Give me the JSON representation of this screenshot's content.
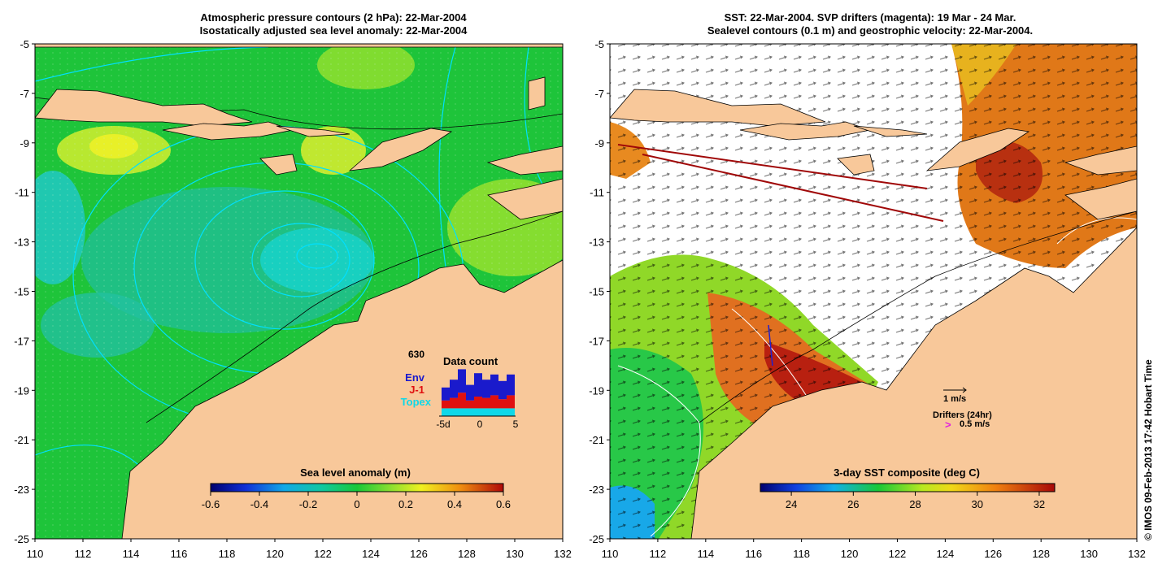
{
  "left_panel": {
    "title_line1": "Atmospheric pressure contours (2 hPa): 22-Mar-2004",
    "title_line2": "Isostatically adjusted sea level anomaly: 22-Mar-2004",
    "y_ticks": [
      "-5",
      "-7",
      "-9",
      "-11",
      "-13",
      "-15",
      "-17",
      "-19",
      "-21",
      "-23",
      "-25"
    ],
    "x_ticks": [
      "110",
      "112",
      "114",
      "116",
      "118",
      "120",
      "122",
      "124",
      "126",
      "128",
      "130",
      "132"
    ],
    "colorbar": {
      "title": "Sea level anomaly (m)",
      "ticks": [
        "-0.6",
        "-0.4",
        "-0.2",
        "0",
        "0.2",
        "0.4",
        "0.6"
      ],
      "range": [
        -0.6,
        0.6
      ]
    },
    "data_count": {
      "title": "Data count",
      "total": "630",
      "series": [
        "Env",
        "J-1",
        "Topex"
      ],
      "series_colors": [
        "#1a1acc",
        "#e01010",
        "#10d8e8"
      ],
      "x_ticks": [
        "-5d",
        "0",
        "5"
      ],
      "bars": [
        {
          "topex": 6,
          "j1": 6,
          "env": 10
        },
        {
          "topex": 6,
          "j1": 8,
          "env": 14
        },
        {
          "topex": 6,
          "j1": 12,
          "env": 18
        },
        {
          "topex": 6,
          "j1": 6,
          "env": 12
        },
        {
          "topex": 6,
          "j1": 9,
          "env": 18
        },
        {
          "topex": 6,
          "j1": 8,
          "env": 14
        },
        {
          "topex": 6,
          "j1": 10,
          "env": 16
        },
        {
          "topex": 6,
          "j1": 7,
          "env": 14
        },
        {
          "topex": 6,
          "j1": 10,
          "env": 16
        }
      ]
    }
  },
  "right_panel": {
    "title_line1": "SST: 22-Mar-2004. SVP drifters (magenta): 19 Mar - 24 Mar.",
    "title_line2": "Sealevel contours (0.1 m) and geostrophic velocity: 22-Mar-2004.",
    "y_ticks": [
      "-5",
      "-7",
      "-9",
      "-11",
      "-13",
      "-15",
      "-17",
      "-19",
      "-21",
      "-23",
      "-25"
    ],
    "x_ticks": [
      "110",
      "112",
      "114",
      "116",
      "118",
      "120",
      "122",
      "124",
      "126",
      "128",
      "130",
      "132"
    ],
    "colorbar": {
      "title": "3-day SST composite (deg C)",
      "ticks": [
        "24",
        "26",
        "28",
        "30",
        "32"
      ],
      "range": [
        23,
        32.5
      ]
    },
    "velocity_scale_label": "1 m/s",
    "drifters_label": "Drifters (24hr)",
    "drifter_marker": ">",
    "drifter_speed_label": "0.5 m/s"
  },
  "copyright": "© IMOS 09-Feb-2013 17:42 Hobart Time",
  "colors": {
    "land": "#f8c89a",
    "sla_ocean": "#1ec43a",
    "sst_warm": "#e06a18",
    "contour": "#00d8ff"
  }
}
